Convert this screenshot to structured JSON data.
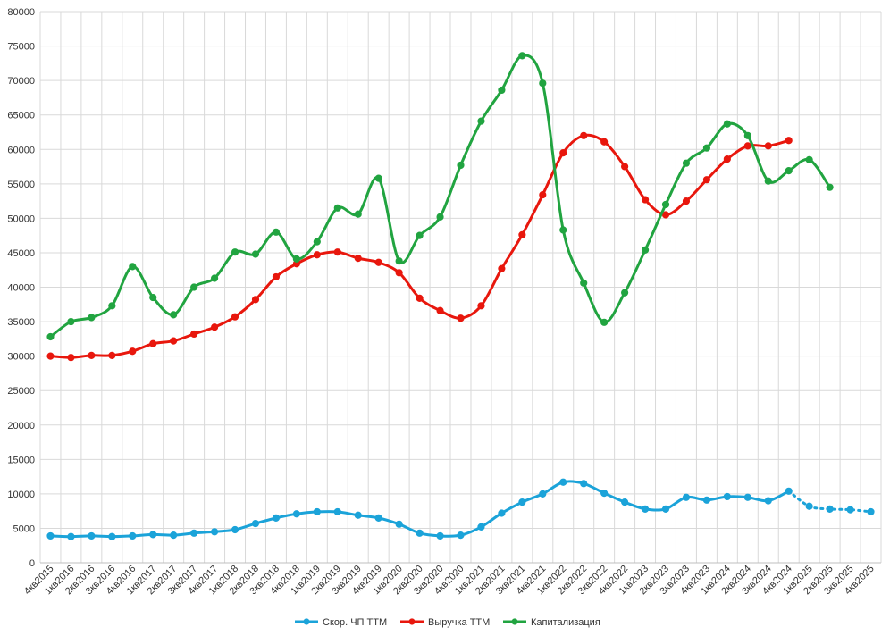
{
  "chart_data": {
    "type": "line",
    "categories": [
      "4кв2015",
      "1кв2016",
      "2кв2016",
      "3кв2016",
      "4кв2016",
      "1кв2017",
      "2кв2017",
      "3кв2017",
      "4кв2017",
      "1кв2018",
      "2кв2018",
      "3кв2018",
      "4кв2018",
      "1кв2019",
      "2кв2019",
      "3кв2019",
      "4кв2019",
      "1кв2020",
      "2кв2020",
      "3кв2020",
      "4кв2020",
      "1кв2021",
      "2кв2021",
      "3кв2021",
      "4кв2021",
      "1кв2022",
      "2кв2022",
      "3кв2022",
      "4кв2022",
      "1кв2023",
      "2кв2023",
      "3кв2023",
      "4кв2023",
      "1кв2024",
      "2кв2024",
      "3кв2024",
      "4кв2024",
      "1кв2025",
      "2кв2025",
      "3кв2025",
      "4кв2025"
    ],
    "ylim": [
      0,
      80000
    ],
    "y_ticks": [
      "0",
      "5000",
      "10000",
      "15000",
      "20000",
      "25000",
      "30000",
      "35000",
      "40000",
      "45000",
      "50000",
      "55000",
      "60000",
      "65000",
      "70000",
      "75000",
      "80000"
    ],
    "grid": true,
    "legend_position": "bottom",
    "series": [
      {
        "name": "Скор. ЧП ТТМ",
        "color": "#1ba3d9",
        "values": [
          3900,
          3800,
          3900,
          3800,
          3900,
          4100,
          4000,
          4300,
          4500,
          4800,
          5700,
          6500,
          7100,
          7400,
          7400,
          6900,
          6500,
          5600,
          4300,
          3900,
          4000,
          5200,
          7200,
          8800,
          10000,
          11700,
          11500,
          10100,
          8800,
          7800,
          7800,
          9500,
          9100,
          9600,
          9500,
          9000,
          10400,
          8200,
          7800,
          7700,
          7400
        ],
        "dotted_from_index": 36
      },
      {
        "name": "Выручка ТТМ",
        "color": "#e8170d",
        "values": [
          30000,
          29800,
          30100,
          30100,
          30700,
          31800,
          32200,
          33200,
          34200,
          35700,
          38200,
          41500,
          43400,
          44700,
          45100,
          44200,
          43600,
          42100,
          38400,
          36600,
          35500,
          37300,
          42700,
          47600,
          53400,
          59500,
          62000,
          61100,
          57500,
          52700,
          50500,
          52500,
          55600,
          58600,
          60500,
          60500,
          61300,
          null,
          null,
          null,
          null
        ]
      },
      {
        "name": "Капитализация",
        "color": "#21a440",
        "values": [
          32800,
          35000,
          35600,
          37300,
          43000,
          38500,
          36000,
          40000,
          41300,
          45100,
          44800,
          48000,
          44100,
          46600,
          51500,
          50600,
          55800,
          43800,
          47500,
          50200,
          57700,
          64100,
          68600,
          73600,
          69600,
          48300,
          40600,
          34900,
          39200,
          45400,
          52000,
          58000,
          60200,
          63700,
          62000,
          55400,
          56900,
          58500,
          54500,
          null,
          null
        ]
      }
    ]
  }
}
